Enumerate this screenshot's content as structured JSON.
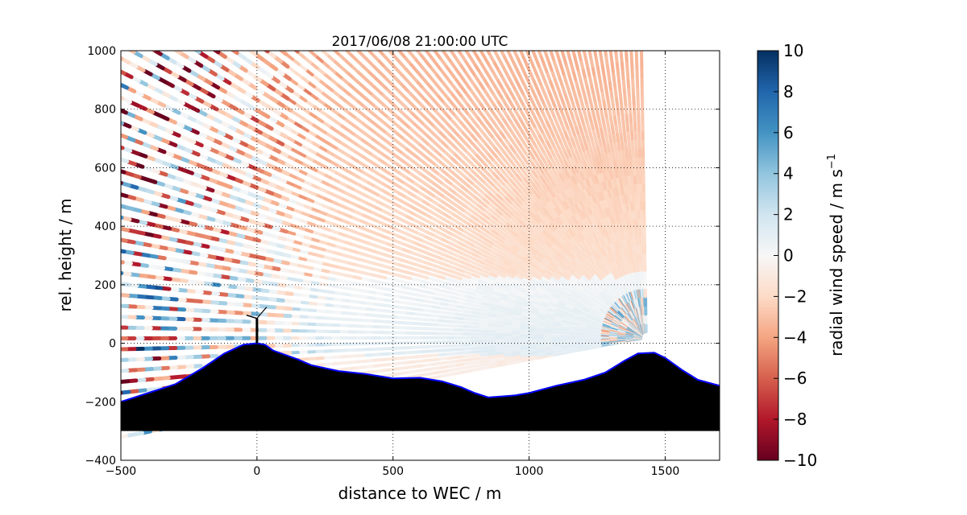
{
  "chart_data": {
    "type": "scatter",
    "title": "2017/06/08 21:00:00 UTC",
    "xlabel": "distance to WEC / m",
    "ylabel": "rel. height / m",
    "xlim": [
      -500,
      1700
    ],
    "ylim": [
      -400,
      1000
    ],
    "xticks": [
      "−500",
      "0",
      "500",
      "1000",
      "1500"
    ],
    "xtick_values": [
      -500,
      0,
      500,
      1000,
      1500
    ],
    "yticks": [
      "−400",
      "−200",
      "0",
      "200",
      "400",
      "600",
      "800",
      "1000"
    ],
    "ytick_values": [
      -400,
      -200,
      0,
      200,
      400,
      600,
      800,
      1000
    ],
    "grid": true,
    "colorbar": {
      "label": "radial wind speed / m s",
      "label_superscript": "−1",
      "range": [
        -10,
        10
      ],
      "ticks": [
        "−10",
        "−8",
        "−6",
        "−4",
        "−2",
        "0",
        "2",
        "4",
        "6",
        "8",
        "10"
      ],
      "tick_values": [
        -10,
        -8,
        -6,
        -4,
        -2,
        0,
        2,
        4,
        6,
        8,
        10
      ],
      "colormap": "RdBu",
      "colors": [
        "#67001f",
        "#b2182b",
        "#d6604d",
        "#f4a582",
        "#fddbc7",
        "#f7f7f7",
        "#d1e5f0",
        "#92c5de",
        "#4393c3",
        "#2166ac",
        "#053061"
      ]
    },
    "scan": {
      "lidar_position": [
        1430,
        20
      ],
      "max_range_x": 1430
    },
    "terrain": {
      "bottom": -300,
      "fill": "#000000",
      "outline": "#0000ff",
      "profile": [
        [
          -500,
          -200
        ],
        [
          -400,
          -170
        ],
        [
          -300,
          -140
        ],
        [
          -200,
          -85
        ],
        [
          -120,
          -35
        ],
        [
          -50,
          -5
        ],
        [
          0,
          0
        ],
        [
          30,
          -5
        ],
        [
          60,
          -25
        ],
        [
          150,
          -55
        ],
        [
          200,
          -75
        ],
        [
          300,
          -95
        ],
        [
          400,
          -105
        ],
        [
          500,
          -120
        ],
        [
          600,
          -118
        ],
        [
          680,
          -130
        ],
        [
          750,
          -150
        ],
        [
          800,
          -170
        ],
        [
          850,
          -185
        ],
        [
          950,
          -178
        ],
        [
          1000,
          -170
        ],
        [
          1100,
          -145
        ],
        [
          1200,
          -125
        ],
        [
          1280,
          -100
        ],
        [
          1350,
          -60
        ],
        [
          1400,
          -35
        ],
        [
          1460,
          -32
        ],
        [
          1500,
          -50
        ],
        [
          1560,
          -90
        ],
        [
          1620,
          -125
        ],
        [
          1700,
          -145
        ]
      ]
    },
    "turbine": {
      "x": 0,
      "hub_height": 85
    }
  }
}
